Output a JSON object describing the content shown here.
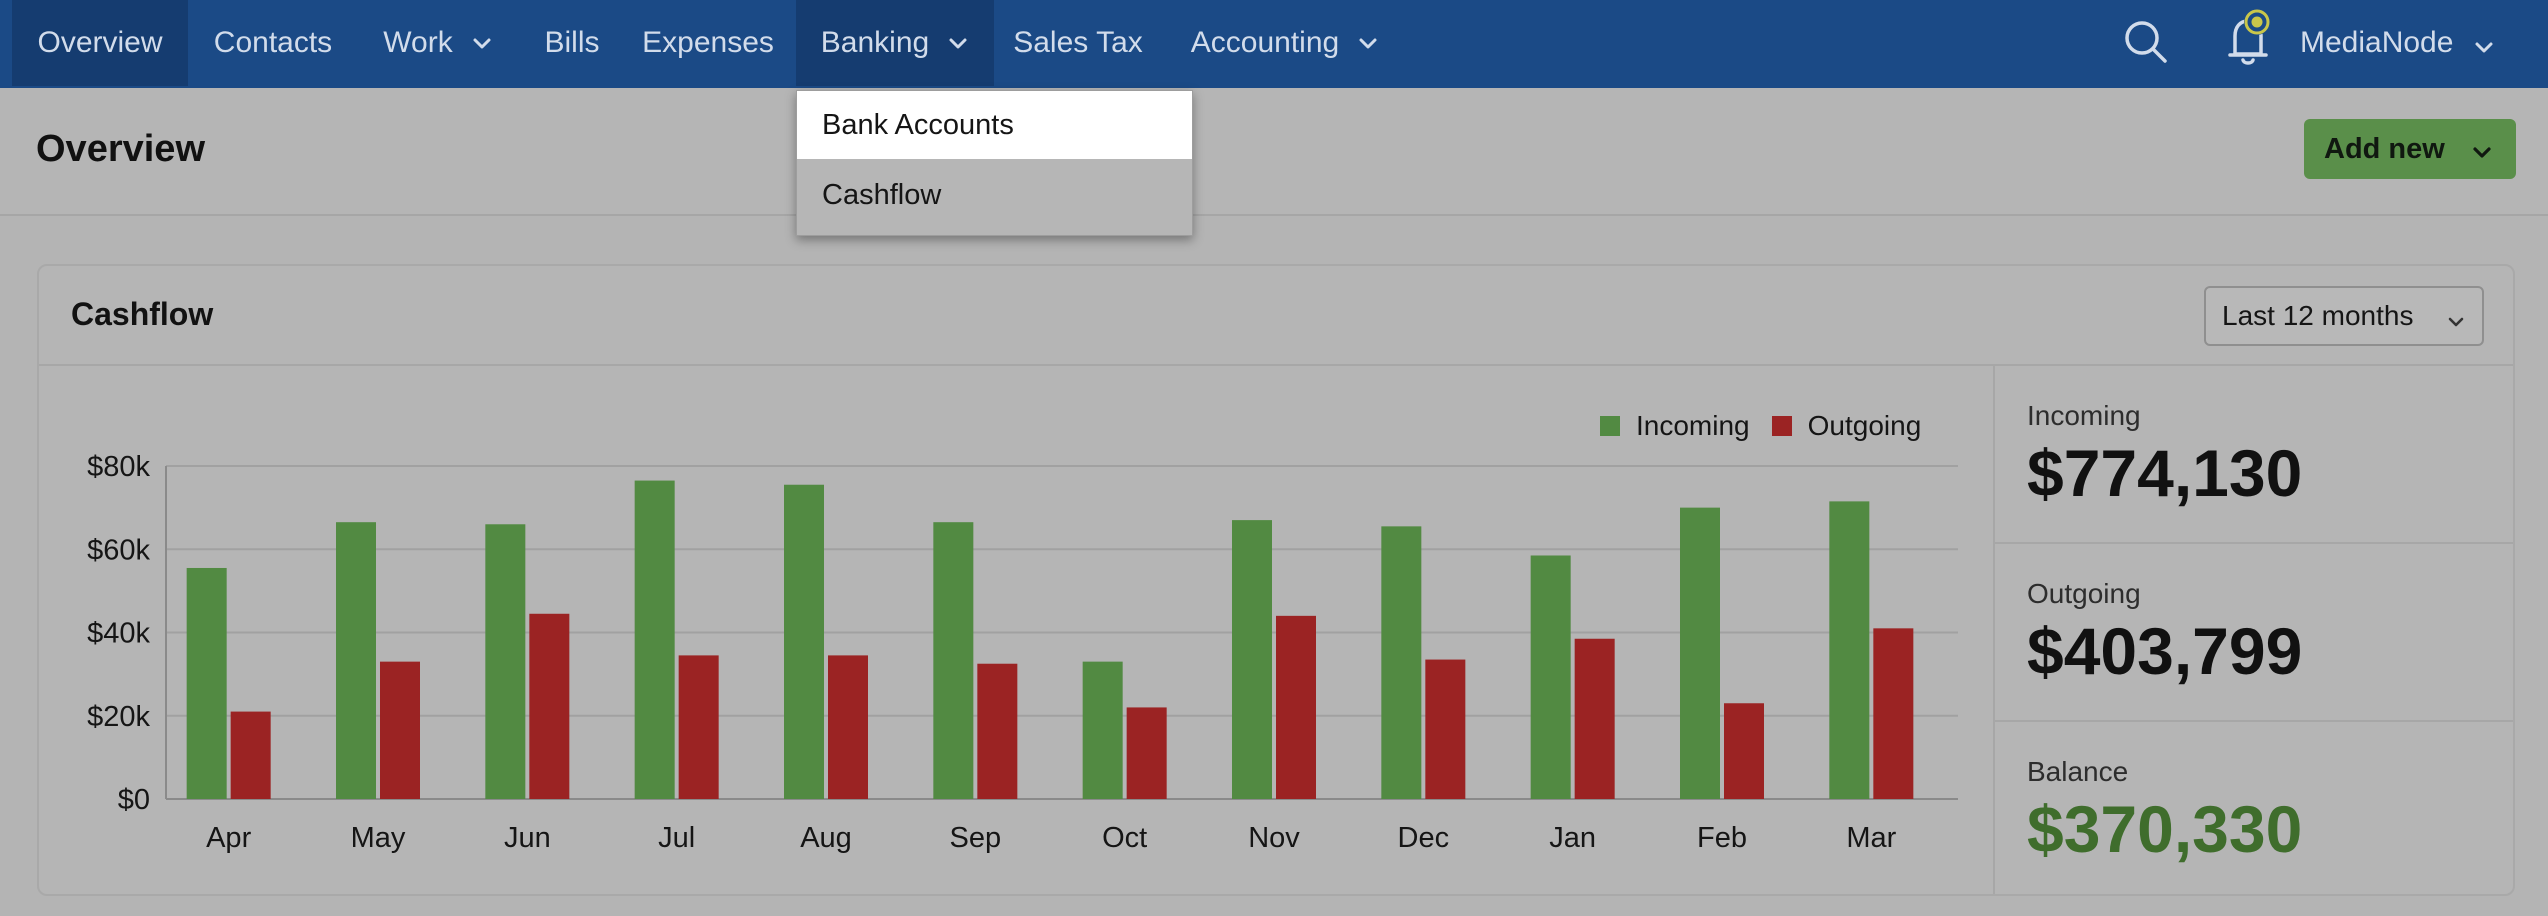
{
  "nav": {
    "items": [
      {
        "label": "Overview",
        "active": true
      },
      {
        "label": "Contacts"
      },
      {
        "label": "Work",
        "dropdown": true
      },
      {
        "label": "Bills"
      },
      {
        "label": "Expenses"
      },
      {
        "label": "Banking",
        "dropdown": true,
        "active": true
      },
      {
        "label": "Sales Tax"
      },
      {
        "label": "Accounting",
        "dropdown": true
      }
    ],
    "icons": [
      "search-icon",
      "bell-icon"
    ],
    "user": "MediaNode"
  },
  "dropdown": {
    "items": [
      {
        "label": "Bank Accounts",
        "highlighted": true
      },
      {
        "label": "Cashflow"
      }
    ]
  },
  "header": {
    "title": "Overview",
    "add_new": "Add new"
  },
  "card": {
    "title": "Cashflow",
    "period": "Last 12 months"
  },
  "stats": {
    "incoming_label": "Incoming",
    "incoming_value": "$774,130",
    "outgoing_label": "Outgoing",
    "outgoing_value": "$403,799",
    "balance_label": "Balance",
    "balance_value": "$370,330"
  },
  "colors": {
    "incoming": "#528a42",
    "outgoing": "#9b2323",
    "nav_bg": "#1b4a86"
  },
  "chart_data": {
    "type": "bar",
    "categories": [
      "Apr",
      "May",
      "Jun",
      "Jul",
      "Aug",
      "Sep",
      "Oct",
      "Nov",
      "Dec",
      "Jan",
      "Feb",
      "Mar"
    ],
    "series": [
      {
        "name": "Incoming",
        "values": [
          55500,
          66500,
          66000,
          76500,
          75500,
          66500,
          33000,
          67000,
          65500,
          58500,
          70000,
          71500
        ]
      },
      {
        "name": "Outgoing",
        "values": [
          21000,
          33000,
          44500,
          34500,
          34500,
          32500,
          22000,
          44000,
          33500,
          38500,
          23000,
          41000
        ]
      }
    ],
    "yticks": [
      "$0",
      "$20k",
      "$40k",
      "$60k",
      "$80k"
    ],
    "ylim": [
      0,
      80000
    ],
    "grid": true,
    "legend": "top-right"
  }
}
